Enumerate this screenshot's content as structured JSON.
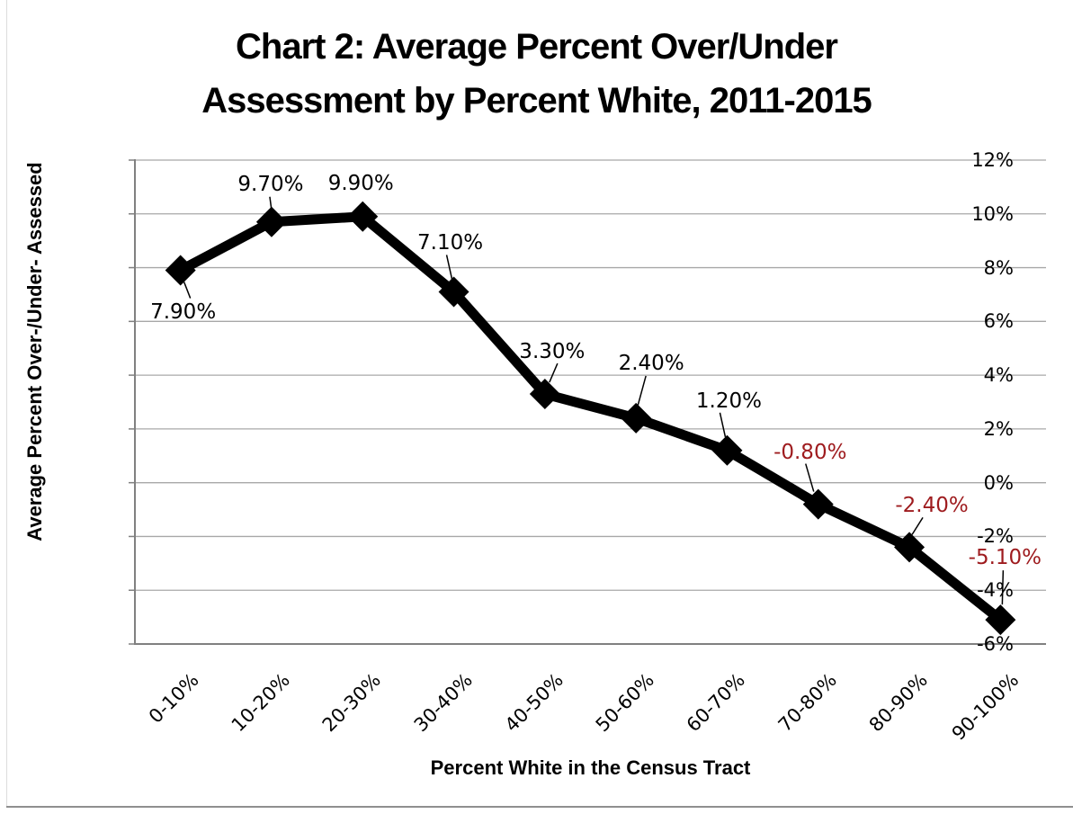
{
  "chart_data": {
    "type": "line",
    "title": "Chart 2: Average Percent Over/Under Assessment by Percent White, 2011-2015",
    "title_lines": [
      "Chart 2: Average Percent Over/Under",
      "Assessment by Percent White, 2011-2015"
    ],
    "xlabel": "Percent White in the Census Tract",
    "ylabel": "Average Percent Over-/Under- Assessed",
    "categories": [
      "0-10%",
      "10-20%",
      "20-30%",
      "30-40%",
      "40-50%",
      "50-60%",
      "60-70%",
      "70-80%",
      "80-90%",
      "90-100%"
    ],
    "values": [
      7.9,
      9.7,
      9.9,
      7.1,
      3.3,
      2.4,
      1.2,
      -0.8,
      -2.4,
      -5.1
    ],
    "data_labels": [
      "7.90%",
      "9.70%",
      "9.90%",
      "7.10%",
      "3.30%",
      "2.40%",
      "1.20%",
      "-0.80%",
      "-2.40%",
      "-5.10%"
    ],
    "ylim": [
      -6,
      12
    ],
    "ytick_step": 2,
    "ytick_labels": [
      "12%",
      "10%",
      "8%",
      "6%",
      "4%",
      "2%",
      "0%",
      "-2%",
      "-4%",
      "-6%"
    ],
    "grid": true,
    "legend": "none",
    "marker": "diamond",
    "colors": {
      "series": "#000000",
      "positive_label": "#000000",
      "negative_label": "#9e1b1e",
      "gridline": "#a8a8a8",
      "axis": "#808080",
      "title": "#000000"
    }
  }
}
